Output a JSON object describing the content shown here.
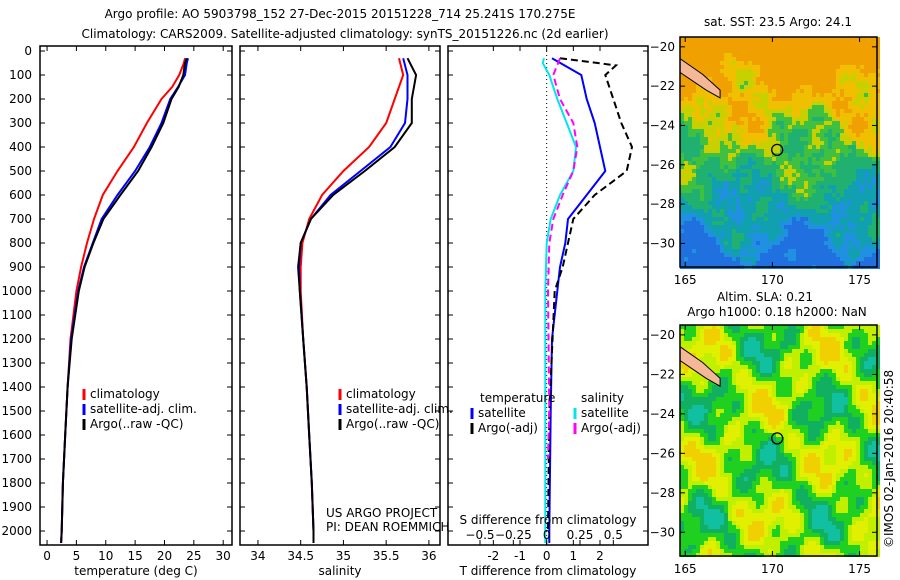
{
  "title_line1": "Argo profile: AO 5903798_152 27-Dec-2015 20151228_714 25.241S 170.275E",
  "title_line2": "Climatology: CARS2009. Satellite-adjusted climatology: synTS_20151226.nc (2d earlier)",
  "project_line1": "US ARGO PROJECT",
  "project_line2": "PI: DEAN ROEMMICH",
  "credit": "©IMOS 02-Jan-2016 20:40:58",
  "chart_data": [
    {
      "type": "line",
      "name": "temperature",
      "xlabel": "temperature (deg C)",
      "xlim": [
        -1.2,
        31.5
      ],
      "ylim": [
        0,
        2070
      ],
      "xticks": [
        0,
        5,
        10,
        15,
        20,
        25,
        30
      ],
      "yticks": [
        0,
        100,
        200,
        300,
        400,
        500,
        600,
        700,
        800,
        900,
        1000,
        1100,
        1200,
        1300,
        1400,
        1500,
        1600,
        1700,
        1800,
        1900,
        2000
      ],
      "legend": [
        "climatology",
        "satellite-adj. clim.",
        "Argo(..raw -QC)"
      ],
      "series": [
        {
          "name": "climatology",
          "color": "#ff0000",
          "depth": [
            30,
            50,
            100,
            150,
            200,
            300,
            400,
            500,
            600,
            700,
            800,
            900,
            1000,
            1200,
            1400,
            1600,
            1800,
            2000,
            2050
          ],
          "values": [
            23.5,
            23.3,
            22.5,
            21.3,
            19.5,
            17,
            14.8,
            12,
            9.5,
            8,
            6.8,
            5.8,
            5,
            4,
            3.5,
            3.1,
            2.7,
            2.5,
            2.4
          ]
        },
        {
          "name": "satellite-adj. clim.",
          "color": "#0000ff",
          "depth": [
            30,
            50,
            100,
            150,
            200,
            300,
            400,
            500,
            600,
            700,
            800,
            900,
            1000,
            1200,
            1400,
            1600,
            1800,
            2000,
            2050
          ],
          "values": [
            24,
            23.8,
            23.5,
            22.3,
            21,
            19.5,
            17.5,
            15,
            12,
            9.3,
            7.8,
            6.3,
            5.3,
            4.1,
            3.5,
            3.1,
            2.7,
            2.5,
            2.4
          ]
        },
        {
          "name": "Argo(..raw -QC)",
          "color": "#000000",
          "depth": [
            30,
            50,
            100,
            150,
            200,
            300,
            400,
            500,
            600,
            700,
            800,
            900,
            1000,
            1200,
            1400,
            1600,
            1800,
            2000,
            2050
          ],
          "values": [
            23.8,
            23.5,
            23.2,
            22.4,
            21.2,
            19.8,
            17.8,
            15.5,
            12.5,
            9.6,
            7.9,
            6.4,
            5.4,
            4.2,
            3.5,
            3.1,
            2.7,
            2.5,
            2.4
          ]
        }
      ]
    },
    {
      "type": "line",
      "name": "salinity",
      "xlabel": "salinity",
      "xlim": [
        33.79,
        36.13
      ],
      "ylim": [
        0,
        2070
      ],
      "xticks": [
        34,
        34.5,
        35,
        35.5,
        36
      ],
      "legend": [
        "climatology",
        "satellite-adj. clim.",
        "Argo(..raw -QC)"
      ],
      "series": [
        {
          "name": "climatology",
          "color": "#ff0000",
          "depth": [
            30,
            100,
            200,
            300,
            400,
            500,
            600,
            700,
            800,
            900,
            1000,
            1200,
            1400,
            1600,
            1800,
            2000,
            2050
          ],
          "values": [
            35.65,
            35.7,
            35.6,
            35.5,
            35.3,
            35.0,
            34.75,
            34.6,
            34.52,
            34.5,
            34.5,
            34.53,
            34.57,
            34.6,
            34.63,
            34.65,
            34.65
          ]
        },
        {
          "name": "satellite-adj. clim.",
          "color": "#0000ff",
          "depth": [
            30,
            100,
            200,
            300,
            400,
            500,
            600,
            700,
            800,
            900,
            1000,
            1200,
            1400,
            1600,
            1800,
            2000,
            2050
          ],
          "values": [
            35.7,
            35.75,
            35.75,
            35.72,
            35.55,
            35.2,
            34.85,
            34.62,
            34.5,
            34.48,
            34.49,
            34.53,
            34.57,
            34.6,
            34.63,
            34.65,
            34.65
          ]
        },
        {
          "name": "Argo(..raw -QC)",
          "color": "#000000",
          "depth": [
            30,
            100,
            200,
            300,
            400,
            500,
            600,
            700,
            800,
            900,
            1000,
            1200,
            1400,
            1600,
            1800,
            2000,
            2050
          ],
          "values": [
            35.75,
            35.85,
            35.8,
            35.8,
            35.6,
            35.25,
            34.88,
            34.62,
            34.5,
            34.47,
            34.49,
            34.53,
            34.57,
            34.6,
            34.63,
            34.65,
            34.65
          ]
        }
      ]
    },
    {
      "type": "line",
      "name": "difference",
      "xlabel": "T difference from climatology",
      "x2label": "S difference from climatology",
      "xlim": [
        -3.7,
        3.8
      ],
      "ylim": [
        0,
        2070
      ],
      "xticks": [
        -2,
        -1,
        0,
        1,
        2
      ],
      "x2ticks": [
        -0.5,
        -0.25,
        0,
        0.25,
        0.5
      ],
      "x2_to_x_factor": 5,
      "legend_headers": [
        "temperature",
        "salinity"
      ],
      "legend": [
        "satellite",
        "Argo(-adj)",
        "satellite",
        "Argo(-adj)"
      ],
      "series": [
        {
          "name": "T satellite",
          "color": "#0000ff",
          "var": "T",
          "depth": [
            30,
            100,
            200,
            300,
            400,
            500,
            600,
            700,
            800,
            900,
            1000,
            1200,
            1500,
            2000,
            2050
          ],
          "values": [
            0.2,
            1.3,
            1.5,
            1.8,
            2.0,
            2.2,
            1.5,
            0.8,
            0.7,
            0.5,
            0.4,
            0.2,
            0.15,
            0.1,
            0.1
          ]
        },
        {
          "name": "T Argo(-adj)",
          "color": "#000000",
          "var": "T",
          "dash": true,
          "depth": [
            30,
            60,
            100,
            200,
            300,
            400,
            500,
            600,
            700,
            800,
            900,
            1000,
            1500,
            2000
          ],
          "values": [
            0.5,
            2.6,
            2.2,
            2.5,
            2.8,
            3.2,
            3.0,
            1.8,
            1.0,
            0.8,
            0.6,
            0.3,
            0.1,
            0.05
          ]
        },
        {
          "name": "S satellite",
          "color": "#00e5ee",
          "var": "S",
          "depth": [
            30,
            50,
            100,
            200,
            300,
            400,
            500,
            600,
            700,
            800,
            1000,
            1500,
            2000,
            2050
          ],
          "values": [
            -0.02,
            -0.03,
            0.02,
            0.08,
            0.15,
            0.22,
            0.2,
            0.1,
            0.03,
            0,
            -0.01,
            -0.01,
            -0.01,
            -0.01
          ]
        },
        {
          "name": "S Argo(-adj)",
          "color": "#ff00ff",
          "var": "S",
          "dash": true,
          "depth": [
            30,
            100,
            200,
            300,
            400,
            500,
            600,
            700,
            800,
            1000,
            1500,
            1700
          ],
          "values": [
            0.1,
            0.05,
            0.1,
            0.2,
            0.23,
            0.2,
            0.12,
            0.05,
            0.02,
            0.01,
            0.02,
            0.01
          ]
        }
      ]
    },
    {
      "type": "heatmap",
      "name": "sst_map",
      "title": "sat. SST: 23.5 Argo: 24.1",
      "xlim": [
        164.7,
        176
      ],
      "ylim": [
        -31.2,
        -19.5
      ],
      "xticks": [
        165,
        170,
        175
      ],
      "yticks": [
        -20,
        -22,
        -24,
        -26,
        -28,
        -30
      ],
      "marker": [
        170.275,
        -25.241
      ]
    },
    {
      "type": "heatmap",
      "name": "sla_map",
      "title1": "Altim. SLA: 0.21",
      "title2": "Argo h1000: 0.18 h2000: NaN",
      "xlim": [
        164.7,
        176
      ],
      "ylim": [
        -31.2,
        -19.5
      ],
      "xticks": [
        165,
        170,
        175
      ],
      "yticks": [
        -20,
        -22,
        -24,
        -26,
        -28,
        -30
      ],
      "marker": [
        170.275,
        -25.241
      ]
    }
  ]
}
